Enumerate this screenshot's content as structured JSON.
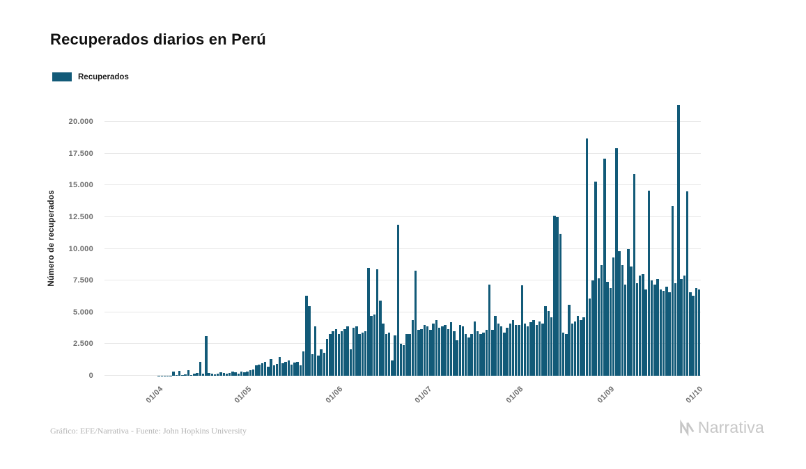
{
  "page": {
    "background": "#ffffff",
    "title": "Recuperados diarios en Perú",
    "footer_credit": "Gráfico: EFE/Narrativa - Fuente: John Hopkins University",
    "brand_name": "Narrativa"
  },
  "legend": {
    "label": "Recuperados",
    "swatch_color": "#125a78"
  },
  "chart_data": {
    "type": "bar",
    "title": "Recuperados diarios en Perú",
    "series_name": "Recuperados",
    "xlabel": "",
    "ylabel": "Número de recuperados",
    "bar_color": "#125a78",
    "grid": "horizontal",
    "legend_position": "top-left",
    "x_unit": "day",
    "ylim": [
      0,
      21650
    ],
    "y_ticks": [
      {
        "value": 0,
        "label": "0"
      },
      {
        "value": 2500,
        "label": "2.500"
      },
      {
        "value": 5000,
        "label": "5.000"
      },
      {
        "value": 7500,
        "label": "7.500"
      },
      {
        "value": 10000,
        "label": "10.000"
      },
      {
        "value": 12500,
        "label": "12.500"
      },
      {
        "value": 15000,
        "label": "15.000"
      },
      {
        "value": 17500,
        "label": "17.500"
      },
      {
        "value": 20000,
        "label": "20.000"
      }
    ],
    "x_ticks": [
      {
        "index": 18,
        "label": "01/04"
      },
      {
        "index": 48,
        "label": "01/05"
      },
      {
        "index": 79,
        "label": "01/06"
      },
      {
        "index": 109,
        "label": "01/07"
      },
      {
        "index": 140,
        "label": "01/08"
      },
      {
        "index": 171,
        "label": "01/09"
      },
      {
        "index": 201,
        "label": "01/10"
      }
    ],
    "values": [
      0,
      0,
      0,
      0,
      0,
      0,
      0,
      0,
      0,
      0,
      0,
      0,
      1,
      0,
      0,
      2,
      1,
      3,
      5,
      10,
      8,
      15,
      20,
      350,
      40,
      380,
      60,
      120,
      420,
      80,
      160,
      220,
      1100,
      190,
      3100,
      230,
      160,
      110,
      190,
      260,
      210,
      160,
      210,
      310,
      260,
      190,
      330,
      280,
      350,
      420,
      500,
      800,
      900,
      1000,
      1100,
      700,
      1300,
      800,
      950,
      1500,
      1000,
      1100,
      1200,
      900,
      1050,
      1100,
      850,
      1900,
      6300,
      5500,
      1700,
      3900,
      1600,
      2100,
      1800,
      2900,
      3300,
      3500,
      3700,
      3300,
      3500,
      3700,
      3900,
      2100,
      3800,
      3900,
      3300,
      3400,
      3500,
      8500,
      4700,
      4800,
      8400,
      5900,
      4100,
      3300,
      3400,
      1200,
      3200,
      11900,
      2500,
      2400,
      3300,
      3300,
      4400,
      8300,
      3600,
      3700,
      4000,
      3900,
      3600,
      4100,
      4400,
      3800,
      3900,
      4000,
      3700,
      4200,
      3500,
      2800,
      4000,
      3900,
      3300,
      3000,
      3300,
      4300,
      3500,
      3300,
      3400,
      3600,
      7200,
      3600,
      4700,
      4100,
      3900,
      3400,
      3800,
      4100,
      4400,
      4000,
      4000,
      7100,
      4100,
      3900,
      4200,
      4400,
      4000,
      4300,
      4100,
      5500,
      5100,
      4600,
      12600,
      12500,
      11200,
      3400,
      3300,
      5600,
      4100,
      4300,
      4700,
      4400,
      4600,
      18700,
      6100,
      7500,
      15300,
      7700,
      8700,
      17100,
      7400,
      6900,
      9300,
      17900,
      9800,
      8700,
      7200,
      10000,
      8600,
      15900,
      7300,
      7900,
      8000,
      6800,
      14600,
      7500,
      7200,
      7600,
      6800,
      6700,
      7000,
      6600,
      13400,
      7300,
      21300,
      7600,
      7900,
      14500,
      6600,
      6300,
      6900,
      6800
    ]
  }
}
